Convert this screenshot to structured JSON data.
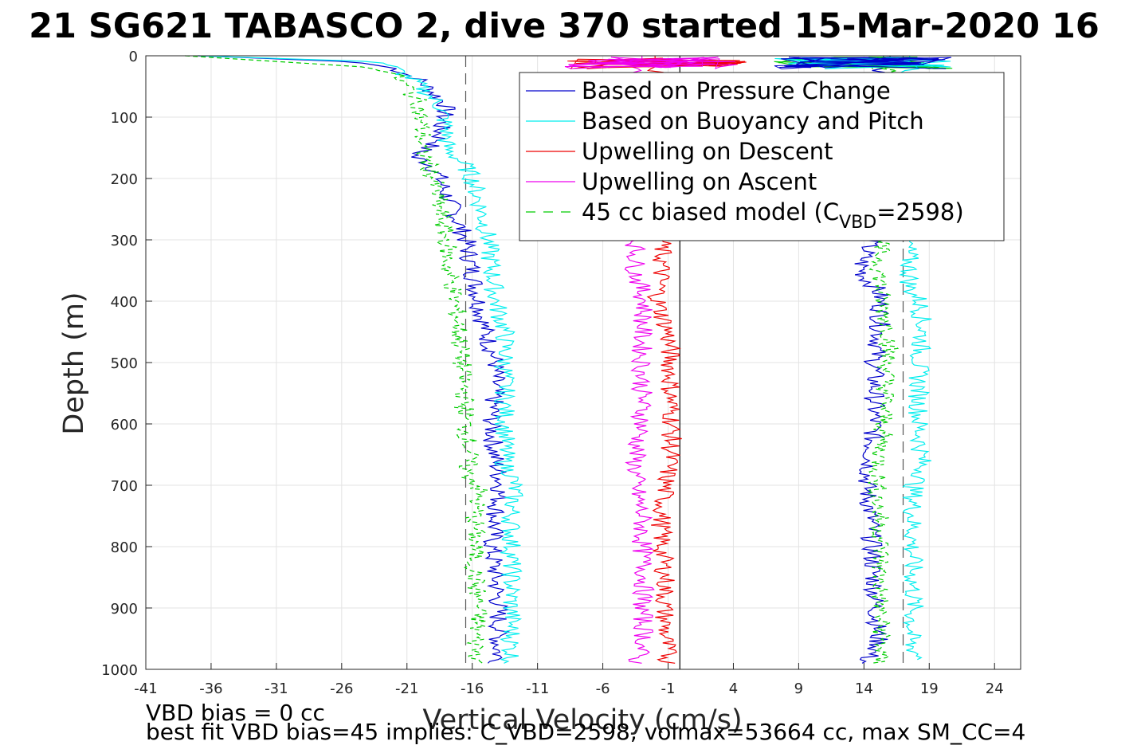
{
  "chart_data": {
    "type": "line",
    "title": "21 SG621 TABASCO 2, dive 370 started 15-Mar-2020 16",
    "xlabel": "Vertical Velocity (cm/s)",
    "ylabel": "Depth (m)",
    "xlim": [
      -41,
      26
    ],
    "ylim": [
      0,
      1000
    ],
    "y_reversed": true,
    "xticks": [
      -41,
      -36,
      -31,
      -26,
      -21,
      -16,
      -11,
      -6,
      -1,
      4,
      9,
      14,
      19,
      24
    ],
    "yticks": [
      0,
      100,
      200,
      300,
      400,
      500,
      600,
      700,
      800,
      900,
      1000
    ],
    "grid": true,
    "legend_position": "top-right",
    "reference_lines": [
      {
        "x": -16.5,
        "style": "dashed",
        "color": "#555555"
      },
      {
        "x": 17,
        "style": "dashed",
        "color": "#555555"
      },
      {
        "x": -0.1,
        "style": "solid",
        "color": "#000000"
      }
    ],
    "series": [
      {
        "name": "Based on Pressure Change",
        "color": "#0000cc",
        "style": "solid",
        "descent": [
          [
            0,
            -37
          ],
          [
            10,
            -25
          ],
          [
            20,
            -22
          ],
          [
            30,
            -21
          ],
          [
            40,
            -20
          ],
          [
            50,
            -19.5
          ],
          [
            60,
            -19
          ],
          [
            70,
            -18.5
          ],
          [
            80,
            -18
          ],
          [
            100,
            -18.2
          ],
          [
            120,
            -18.5
          ],
          [
            140,
            -18.5
          ],
          [
            150,
            -19.5
          ],
          [
            165,
            -20.5
          ],
          [
            170,
            -19.8
          ],
          [
            180,
            -19
          ],
          [
            200,
            -18.5
          ],
          [
            250,
            -17.5
          ],
          [
            300,
            -16.5
          ],
          [
            350,
            -16
          ],
          [
            400,
            -15.5
          ],
          [
            450,
            -15
          ],
          [
            500,
            -14.2
          ],
          [
            550,
            -14.3
          ],
          [
            600,
            -14.5
          ],
          [
            650,
            -14.3
          ],
          [
            680,
            -14
          ],
          [
            700,
            -13.8
          ],
          [
            750,
            -14.2
          ],
          [
            800,
            -14.5
          ],
          [
            850,
            -14.2
          ],
          [
            900,
            -14
          ],
          [
            950,
            -14
          ],
          [
            990,
            -14
          ]
        ],
        "ascent": [
          [
            0,
            15.5
          ],
          [
            300,
            14.5
          ],
          [
            340,
            13.8
          ],
          [
            360,
            14
          ],
          [
            380,
            15
          ],
          [
            400,
            15.3
          ],
          [
            450,
            15.2
          ],
          [
            500,
            14.8
          ],
          [
            600,
            14.8
          ],
          [
            700,
            14.2
          ],
          [
            750,
            14.5
          ],
          [
            800,
            14.6
          ],
          [
            900,
            14.9
          ],
          [
            960,
            15.1
          ],
          [
            990,
            14
          ]
        ]
      },
      {
        "name": "Based on Buoyancy and Pitch",
        "color": "#00eeee",
        "style": "solid",
        "descent": [
          [
            0,
            -37
          ],
          [
            10,
            -23
          ],
          [
            20,
            -22
          ],
          [
            40,
            -20.5
          ],
          [
            60,
            -19.5
          ],
          [
            80,
            -18.5
          ],
          [
            100,
            -18.2
          ],
          [
            120,
            -18
          ],
          [
            150,
            -18
          ],
          [
            170,
            -17
          ],
          [
            180,
            -16.5
          ],
          [
            200,
            -16
          ],
          [
            250,
            -15.3
          ],
          [
            300,
            -14.8
          ],
          [
            350,
            -14.5
          ],
          [
            400,
            -14.2
          ],
          [
            450,
            -13.5
          ],
          [
            500,
            -13.5
          ],
          [
            550,
            -13.5
          ],
          [
            600,
            -13.5
          ],
          [
            650,
            -13.5
          ],
          [
            670,
            -13.5
          ],
          [
            680,
            -13
          ],
          [
            700,
            -12.8
          ],
          [
            750,
            -13
          ],
          [
            800,
            -13
          ],
          [
            850,
            -13
          ],
          [
            900,
            -13
          ],
          [
            950,
            -13
          ],
          [
            990,
            -13
          ]
        ],
        "ascent": [
          [
            0,
            17.5
          ],
          [
            300,
            17.3
          ],
          [
            350,
            17.5
          ],
          [
            380,
            17.5
          ],
          [
            400,
            18.3
          ],
          [
            450,
            18.5
          ],
          [
            500,
            18.2
          ],
          [
            600,
            18.2
          ],
          [
            680,
            18.5
          ],
          [
            700,
            17.8
          ],
          [
            800,
            17.7
          ],
          [
            900,
            17.8
          ],
          [
            960,
            17.5
          ],
          [
            985,
            18.5
          ]
        ]
      },
      {
        "name": "Upwelling on Descent",
        "color": "#ee0000",
        "style": "solid",
        "points": [
          [
            0,
            -2
          ],
          [
            300,
            -1.5
          ],
          [
            350,
            -1.5
          ],
          [
            400,
            -1.8
          ],
          [
            450,
            -1
          ],
          [
            500,
            -0.8
          ],
          [
            550,
            -0.8
          ],
          [
            600,
            -0.7
          ],
          [
            650,
            -0.8
          ],
          [
            700,
            -1.2
          ],
          [
            750,
            -1.5
          ],
          [
            800,
            -1.5
          ],
          [
            850,
            -1.2
          ],
          [
            900,
            -1.3
          ],
          [
            950,
            -1.2
          ],
          [
            990,
            -1
          ]
        ]
      },
      {
        "name": "Upwelling on Ascent",
        "color": "#ee00ee",
        "style": "solid",
        "points": [
          [
            0,
            -3
          ],
          [
            300,
            -3.5
          ],
          [
            350,
            -3.5
          ],
          [
            400,
            -2.8
          ],
          [
            450,
            -3
          ],
          [
            500,
            -3
          ],
          [
            550,
            -3
          ],
          [
            600,
            -3
          ],
          [
            650,
            -3.5
          ],
          [
            700,
            -3.5
          ],
          [
            750,
            -3
          ],
          [
            800,
            -3
          ],
          [
            850,
            -2.8
          ],
          [
            900,
            -3
          ],
          [
            950,
            -2.8
          ],
          [
            990,
            -3.5
          ]
        ]
      },
      {
        "name": "45 cc biased model (C_VBD=2598)",
        "color": "#00cc00",
        "style": "dashed",
        "descent": [
          [
            0,
            -38
          ],
          [
            20,
            -23
          ],
          [
            30,
            -22
          ],
          [
            50,
            -21
          ],
          [
            80,
            -20
          ],
          [
            100,
            -20
          ],
          [
            130,
            -19.8
          ],
          [
            150,
            -20
          ],
          [
            170,
            -19.5
          ],
          [
            200,
            -19
          ],
          [
            250,
            -18.5
          ],
          [
            300,
            -18
          ],
          [
            350,
            -17.8
          ],
          [
            400,
            -17.3
          ],
          [
            450,
            -17
          ],
          [
            500,
            -16.8
          ],
          [
            600,
            -16.5
          ],
          [
            650,
            -16.2
          ],
          [
            680,
            -16.5
          ],
          [
            700,
            -15.5
          ],
          [
            750,
            -15.8
          ],
          [
            800,
            -15.8
          ],
          [
            850,
            -15.8
          ],
          [
            900,
            -15.5
          ],
          [
            950,
            -15.7
          ],
          [
            990,
            -15.5
          ]
        ],
        "ascent": [
          [
            0,
            16
          ],
          [
            300,
            15.2
          ],
          [
            400,
            15.3
          ],
          [
            450,
            16
          ],
          [
            500,
            15.8
          ],
          [
            600,
            15.5
          ],
          [
            700,
            15
          ],
          [
            800,
            15.3
          ],
          [
            900,
            15.2
          ],
          [
            960,
            15.4
          ],
          [
            990,
            15
          ]
        ]
      }
    ],
    "legend": [
      {
        "label": "Based on Pressure Change"
      },
      {
        "label": "Based on Buoyancy and Pitch"
      },
      {
        "label": "Upwelling on Descent"
      },
      {
        "label": "Upwelling on Ascent"
      },
      {
        "label_main": "45 cc biased model (C",
        "label_sub": "VBD",
        "label_end": "=2598)"
      }
    ]
  },
  "footer": {
    "line1": "VBD bias = 0 cc",
    "line2": "best fit VBD bias=45 implies: C_VBD=2598, volmax=53664 cc, max SM_CC=4"
  }
}
